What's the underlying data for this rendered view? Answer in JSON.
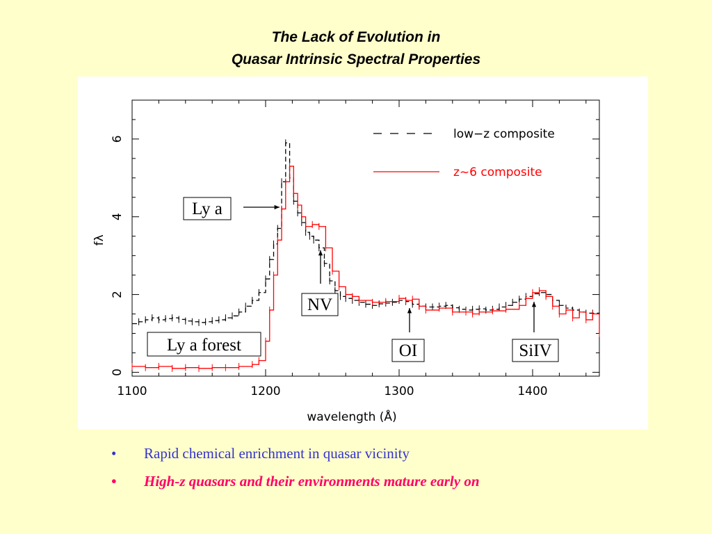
{
  "slide": {
    "title_line1": "The Lack of Evolution in",
    "title_line2": "Quasar Intrinsic Spectral Properties"
  },
  "bullets": [
    {
      "marker": "•",
      "text": "Rapid chemical enrichment in quasar vicinity",
      "color": "#3333cc"
    },
    {
      "marker": "•",
      "text": "High-z quasars and their environments mature early on",
      "color": "#ff0066"
    }
  ],
  "chart_data": {
    "type": "line",
    "xlabel": "wavelength (Å)",
    "ylabel": "fλ",
    "xlim": [
      1100,
      1450
    ],
    "ylim": [
      -0.1,
      7.0
    ],
    "x_ticks": [
      1100,
      1200,
      1300,
      1400
    ],
    "y_ticks": [
      0,
      2,
      4,
      6
    ],
    "grid": false,
    "legend_position": "top-right",
    "series": [
      {
        "name": "low−z composite",
        "color": "#000000",
        "style": "dashed",
        "x": [
          1100,
          1105,
          1110,
          1115,
          1120,
          1125,
          1130,
          1135,
          1140,
          1145,
          1150,
          1155,
          1160,
          1165,
          1170,
          1175,
          1180,
          1185,
          1190,
          1195,
          1200,
          1203,
          1206,
          1209,
          1212,
          1215,
          1218,
          1221,
          1224,
          1227,
          1230,
          1233,
          1236,
          1240,
          1244,
          1248,
          1252,
          1256,
          1260,
          1265,
          1270,
          1275,
          1280,
          1285,
          1290,
          1295,
          1300,
          1305,
          1310,
          1315,
          1320,
          1325,
          1330,
          1335,
          1340,
          1345,
          1350,
          1355,
          1360,
          1365,
          1370,
          1375,
          1380,
          1385,
          1390,
          1395,
          1400,
          1405,
          1410,
          1415,
          1420,
          1425,
          1430,
          1435,
          1440,
          1445,
          1450
        ],
        "y": [
          1.25,
          1.3,
          1.35,
          1.4,
          1.35,
          1.38,
          1.4,
          1.36,
          1.32,
          1.3,
          1.28,
          1.3,
          1.33,
          1.35,
          1.4,
          1.45,
          1.55,
          1.7,
          1.85,
          2.05,
          2.4,
          2.9,
          3.3,
          3.7,
          4.9,
          5.9,
          5.0,
          4.4,
          4.1,
          3.85,
          3.6,
          3.5,
          3.4,
          3.2,
          2.8,
          2.35,
          2.1,
          1.95,
          1.9,
          1.85,
          1.8,
          1.75,
          1.72,
          1.76,
          1.78,
          1.8,
          1.85,
          1.82,
          1.75,
          1.7,
          1.68,
          1.68,
          1.7,
          1.72,
          1.66,
          1.62,
          1.6,
          1.62,
          1.63,
          1.6,
          1.62,
          1.68,
          1.72,
          1.8,
          1.88,
          1.95,
          2.02,
          2.05,
          2.0,
          1.85,
          1.72,
          1.65,
          1.6,
          1.55,
          1.52,
          1.52,
          1.5
        ]
      },
      {
        "name": "z~6 composite",
        "color": "#ff0000",
        "style": "solid",
        "x": [
          1100,
          1110,
          1120,
          1130,
          1140,
          1150,
          1160,
          1170,
          1180,
          1190,
          1195,
          1200,
          1203,
          1206,
          1209,
          1212,
          1215,
          1218,
          1221,
          1224,
          1227,
          1230,
          1235,
          1240,
          1245,
          1250,
          1255,
          1260,
          1265,
          1270,
          1280,
          1290,
          1300,
          1305,
          1310,
          1315,
          1320,
          1330,
          1340,
          1350,
          1355,
          1360,
          1370,
          1380,
          1390,
          1395,
          1400,
          1405,
          1410,
          1415,
          1420,
          1425,
          1430,
          1435,
          1440,
          1445,
          1450
        ],
        "y": [
          0.15,
          0.12,
          0.15,
          0.1,
          0.12,
          0.1,
          0.12,
          0.12,
          0.15,
          0.2,
          0.3,
          0.8,
          1.6,
          2.5,
          3.4,
          4.2,
          4.9,
          5.3,
          4.6,
          4.3,
          4.0,
          3.75,
          3.8,
          3.75,
          3.2,
          2.6,
          2.2,
          2.0,
          1.95,
          1.85,
          1.8,
          1.82,
          1.9,
          1.85,
          1.88,
          1.7,
          1.6,
          1.65,
          1.55,
          1.55,
          1.5,
          1.55,
          1.58,
          1.62,
          1.72,
          1.9,
          2.05,
          2.1,
          1.95,
          1.7,
          1.5,
          1.6,
          1.4,
          1.55,
          1.35,
          1.5,
          1.0
        ]
      }
    ],
    "annotations": [
      {
        "label": "Ly a",
        "x": 1210,
        "y": 4.2
      },
      {
        "label": "NV",
        "x": 1240,
        "y": 3.05
      },
      {
        "label": "OI",
        "x": 1305,
        "y": 1.55
      },
      {
        "label": "SiIV",
        "x": 1400,
        "y": 1.65
      },
      {
        "label": "Ly a forest",
        "x": 1150,
        "y": 0.3
      }
    ]
  }
}
